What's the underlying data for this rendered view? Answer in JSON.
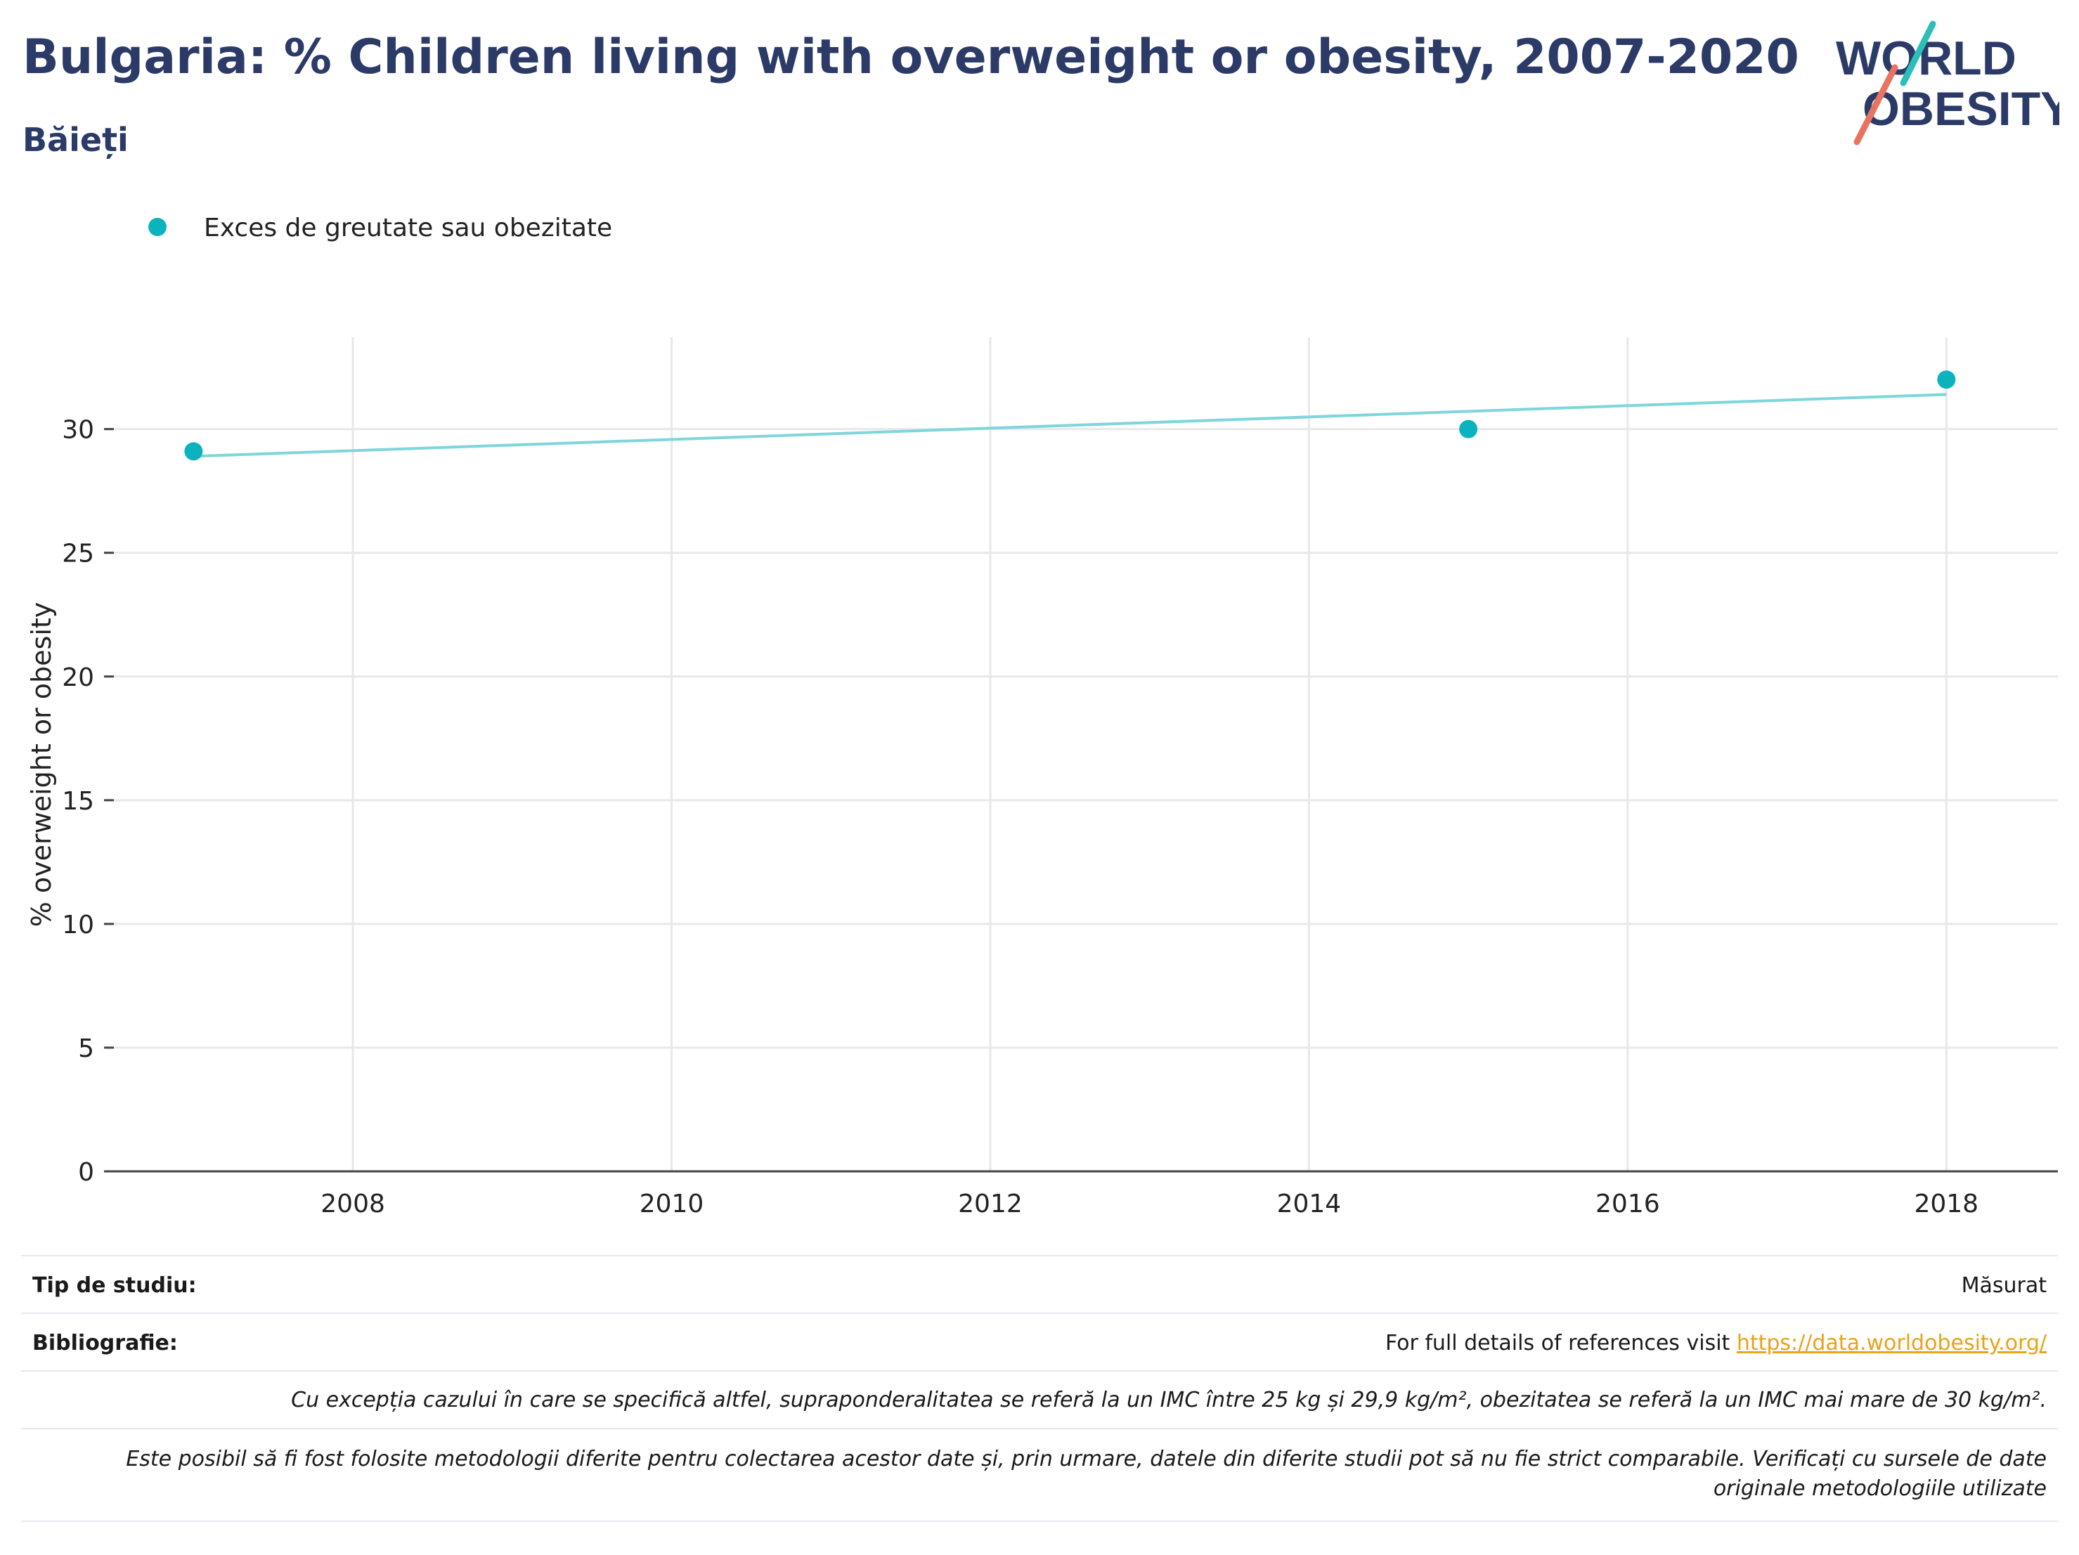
{
  "header": {
    "title": "Bulgaria: % Children living with overweight or obesity, 2007-2020",
    "subtitle": "Băieți",
    "logo_line1": "WORLD",
    "logo_line2": "OBESITY"
  },
  "chart_data": {
    "type": "scatter",
    "title": "Bulgaria: % Children living with overweight or obesity, 2007-2020",
    "subtitle": "Băieți",
    "xlabel": "",
    "ylabel": "% overweight or obesity",
    "xlim": [
      2006.5,
      2018.7
    ],
    "ylim": [
      0,
      33
    ],
    "x_ticks": [
      2008,
      2010,
      2012,
      2014,
      2016,
      2018
    ],
    "y_ticks": [
      0,
      5,
      10,
      15,
      20,
      25,
      30
    ],
    "grid": true,
    "legend_position": "top-left",
    "series": [
      {
        "name": "Exces de greutate sau obezitate",
        "color": "#0bb3bf",
        "points": [
          {
            "x": 2007,
            "y": 29.1
          },
          {
            "x": 2015,
            "y": 30.0
          },
          {
            "x": 2018,
            "y": 32.0
          }
        ]
      }
    ],
    "trendline": {
      "color": "#7dd6dc",
      "start": {
        "x": 2007,
        "y": 28.9
      },
      "end": {
        "x": 2018,
        "y": 31.4
      }
    }
  },
  "footer": {
    "study_type_label": "Tip de studiu:",
    "study_type_value": "Măsurat",
    "bibliography_label": "Bibliografie:",
    "bibliography_text": "For full details of references visit ",
    "bibliography_link": "https://data.worldobesity.org/",
    "note1": "Cu excepția cazului în care se specifică altfel, supraponderalitatea se referă la un IMC între 25 kg și 29,9 kg/m², obezitatea se referă la un IMC mai mare de 30 kg/m².",
    "note2_line1": "Este posibil să fi fost folosite metodologii diferite pentru colectarea acestor date și, prin urmare, datele din diferite studii pot să nu fie strict comparabile. Verificați cu sursele de date",
    "note2_line2": "originale metodologiile utilizate"
  },
  "colors": {
    "title": "#2b3a67",
    "accent_teal": "#0bb3bf",
    "logo_slash": "#e8735f",
    "link": "#e8a317"
  }
}
